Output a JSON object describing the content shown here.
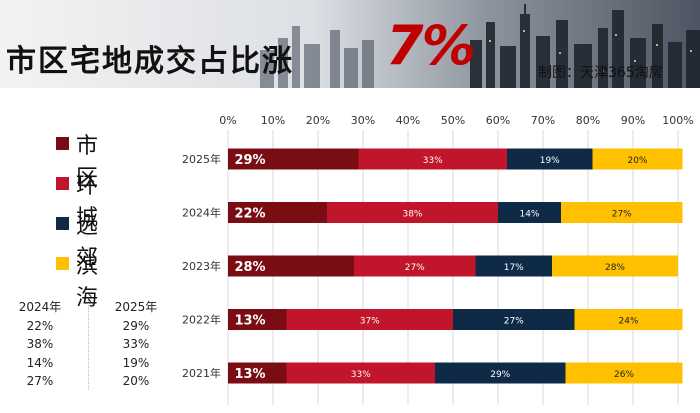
{
  "header": {
    "title_main": "市区宅地成交占比涨",
    "title_pct": "7%",
    "credit": "制图：天津365淘房"
  },
  "legend": [
    {
      "label": "市区",
      "color": "#7a0c14"
    },
    {
      "label": "环城",
      "color": "#c0152a"
    },
    {
      "label": "远郊",
      "color": "#0e2a47"
    },
    {
      "label": "滨海",
      "color": "#ffc000"
    }
  ],
  "side_table": {
    "col1": {
      "header": "2024年",
      "values": [
        "22%",
        "38%",
        "14%",
        "27%"
      ]
    },
    "col2": {
      "header": "2025年",
      "values": [
        "29%",
        "33%",
        "19%",
        "20%"
      ]
    }
  },
  "chart_data": {
    "type": "bar",
    "orientation": "horizontal",
    "stacked": "100%",
    "categories": [
      "2025年",
      "2024年",
      "2023年",
      "2022年",
      "2021年"
    ],
    "series": [
      {
        "name": "市区",
        "color": "#7a0c14",
        "values": [
          29,
          22,
          28,
          13,
          13
        ]
      },
      {
        "name": "环城",
        "color": "#c0152a",
        "values": [
          33,
          38,
          27,
          37,
          33
        ]
      },
      {
        "name": "远郊",
        "color": "#0e2a47",
        "values": [
          19,
          14,
          17,
          27,
          29
        ]
      },
      {
        "name": "滨海",
        "color": "#ffc000",
        "values": [
          20,
          27,
          28,
          24,
          26
        ]
      }
    ],
    "xlim": [
      0,
      100
    ],
    "xticks": [
      "0%",
      "10%",
      "20%",
      "30%",
      "40%",
      "50%",
      "60%",
      "70%",
      "80%",
      "90%",
      "100%"
    ],
    "grid": true
  }
}
